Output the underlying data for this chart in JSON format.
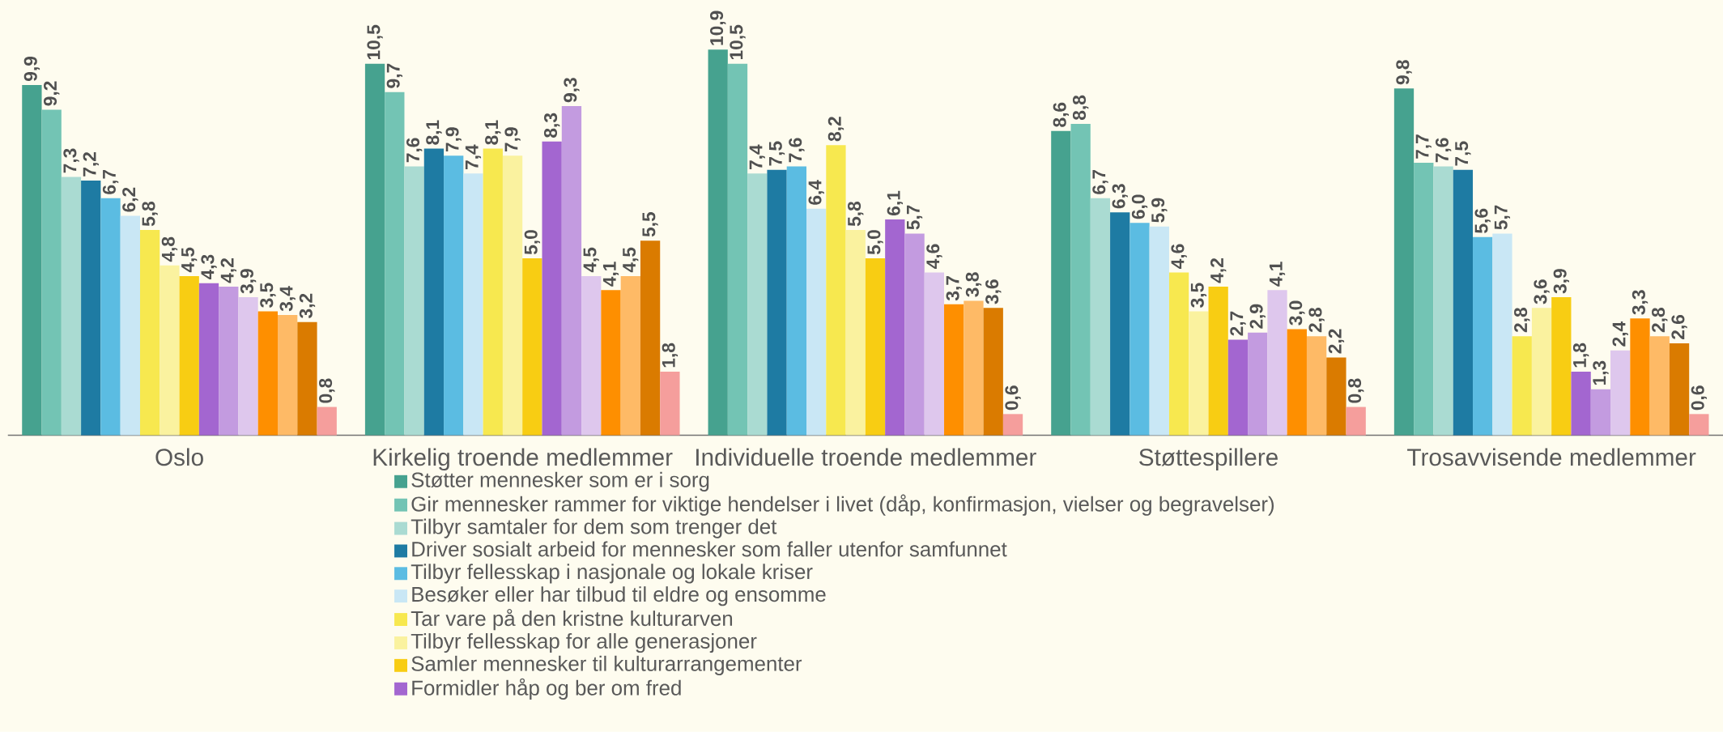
{
  "chart_data": {
    "type": "bar",
    "categories": [
      "Oslo",
      "Kirkelig troende medlemmer",
      "Individuelle troende medlemmer",
      "Støttespillere",
      "Trosavvisende medlemmer"
    ],
    "ylim": [
      0,
      12.3
    ],
    "tick_labels": "x",
    "legend": "bottom",
    "grid": false,
    "series": [
      {
        "name": "Støtter mennesker som er i sorg",
        "color": "#46a28f",
        "values": [
          9.9,
          10.5,
          10.9,
          8.6,
          9.8
        ],
        "value_labels": [
          "9,9",
          "10,5",
          "10,9",
          "8,6",
          "9,8"
        ]
      },
      {
        "name": "Gir mennesker rammer for viktige hendelser i livet (dåp, konfirmasjon, vielser og begravelser)",
        "color": "#73c4b4",
        "values": [
          9.2,
          9.7,
          10.5,
          8.8,
          7.7
        ],
        "value_labels": [
          "9,2",
          "9,7",
          "10,5",
          "8,8",
          "7,7"
        ]
      },
      {
        "name": "Tilbyr samtaler for dem som trenger det",
        "color": "#aadbd2",
        "values": [
          7.3,
          7.6,
          7.4,
          6.7,
          7.6
        ],
        "value_labels": [
          "7,3",
          "7,6",
          "7,4",
          "6,7",
          "7,6"
        ]
      },
      {
        "name": "Driver sosialt arbeid for mennesker som faller utenfor samfunnet",
        "color": "#1e7ba3",
        "values": [
          7.2,
          8.1,
          7.5,
          6.3,
          7.5
        ],
        "value_labels": [
          "7,2",
          "8,1",
          "7,5",
          "6,3",
          "7,5"
        ]
      },
      {
        "name": "Tilbyr fellesskap i nasjonale og lokale kriser",
        "color": "#5bbce2",
        "values": [
          6.7,
          7.9,
          7.6,
          6.0,
          5.6
        ],
        "value_labels": [
          "6,7",
          "7,9",
          "7,6",
          "6,0",
          "5,6"
        ]
      },
      {
        "name": "Besøker eller har tilbud til eldre og ensomme",
        "color": "#c9e7f5",
        "values": [
          6.2,
          7.4,
          6.4,
          5.9,
          5.7
        ],
        "value_labels": [
          "6,2",
          "7,4",
          "6,4",
          "5,9",
          "5,7"
        ]
      },
      {
        "name": "Tar vare på den kristne kulturarven",
        "color": "#f7e84f",
        "values": [
          5.8,
          8.1,
          8.2,
          4.6,
          2.8
        ],
        "value_labels": [
          "5,8",
          "8,1",
          "8,2",
          "4,6",
          "2,8"
        ]
      },
      {
        "name": "Tilbyr fellesskap for alle generasjoner",
        "color": "#faf29f",
        "values": [
          4.8,
          7.9,
          5.8,
          3.5,
          3.6
        ],
        "value_labels": [
          "4,8",
          "7,9",
          "5,8",
          "3,5",
          "3,6"
        ]
      },
      {
        "name": "Samler mennesker til kulturarrangementer",
        "color": "#f8cd13",
        "values": [
          4.5,
          5.0,
          5.0,
          4.2,
          3.9
        ],
        "value_labels": [
          "4,5",
          "5,0",
          "5,0",
          "4,2",
          "3,9"
        ]
      },
      {
        "name": "Formidler håp og ber om fred",
        "color": "#a366d0",
        "values": [
          4.3,
          8.3,
          6.1,
          2.7,
          1.8
        ],
        "value_labels": [
          "4,3",
          "8,3",
          "6,1",
          "2,7",
          "1,8"
        ]
      },
      {
        "color": "#c39be0",
        "values": [
          4.2,
          9.3,
          5.7,
          2.9,
          1.3
        ],
        "value_labels": [
          "4,2",
          "9,3",
          "5,7",
          "2,9",
          "1,3"
        ]
      },
      {
        "color": "#dec7ed",
        "values": [
          3.9,
          4.5,
          4.6,
          4.1,
          2.4
        ],
        "value_labels": [
          "3,9",
          "4,5",
          "4,6",
          "4,1",
          "2,4"
        ]
      },
      {
        "color": "#fe8f00",
        "values": [
          3.5,
          4.1,
          3.7,
          3.0,
          3.3
        ],
        "value_labels": [
          "3,5",
          "4,1",
          "3,7",
          "3,0",
          "3,3"
        ]
      },
      {
        "color": "#feba66",
        "values": [
          3.4,
          4.5,
          3.8,
          2.8,
          2.8
        ],
        "value_labels": [
          "3,4",
          "4,5",
          "3,8",
          "2,8",
          "2,8"
        ]
      },
      {
        "color": "#da7b00",
        "values": [
          3.2,
          5.5,
          3.6,
          2.2,
          2.6
        ],
        "value_labels": [
          "3,2",
          "5,5",
          "3,6",
          "2,2",
          "2,6"
        ]
      },
      {
        "color": "#f59e9c",
        "values": [
          0.8,
          1.8,
          0.6,
          0.8,
          0.6
        ],
        "value_labels": [
          "0,8",
          "1,8",
          "0,6",
          "0,8",
          "0,6"
        ]
      }
    ]
  }
}
